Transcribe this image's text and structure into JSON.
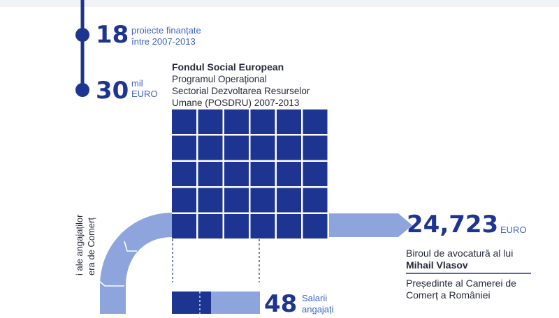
{
  "stats": [
    {
      "number": "18",
      "unit": "",
      "label_lines": [
        "proiecte finanțate",
        "între 2007-2013"
      ]
    },
    {
      "number": "30",
      "unit": "mil",
      "label_lines": [
        "EURO"
      ]
    }
  ],
  "fund": {
    "title": "Fondul Social European",
    "desc_lines": [
      "Programul Operațional",
      "Sectorial Dezvoltarea Resurselor",
      "Umane (POSDRU) 2007-2013"
    ]
  },
  "grid": {
    "cols": 6,
    "rows": 5,
    "color": "#1d3590"
  },
  "payment": {
    "amount": "24,723",
    "currency": "EURO",
    "recipient_prefix": "Biroul de avocatură al lui",
    "recipient_name": "Mihail Vlasov",
    "role_lines": [
      "Președinte al Camerei de",
      "Comerț a României"
    ]
  },
  "salaries": {
    "number": "48",
    "label_lines": [
      "Salarii",
      "angajați"
    ]
  },
  "vertical_text_lines": [
    "i ale angajaților",
    "era de Comerț"
  ],
  "colors": {
    "dark_blue": "#1d3590",
    "light_blue": "#8da5dc",
    "text_blue": "#3f63c2",
    "text_dark": "#262a3a",
    "divider": "#1d3590"
  }
}
